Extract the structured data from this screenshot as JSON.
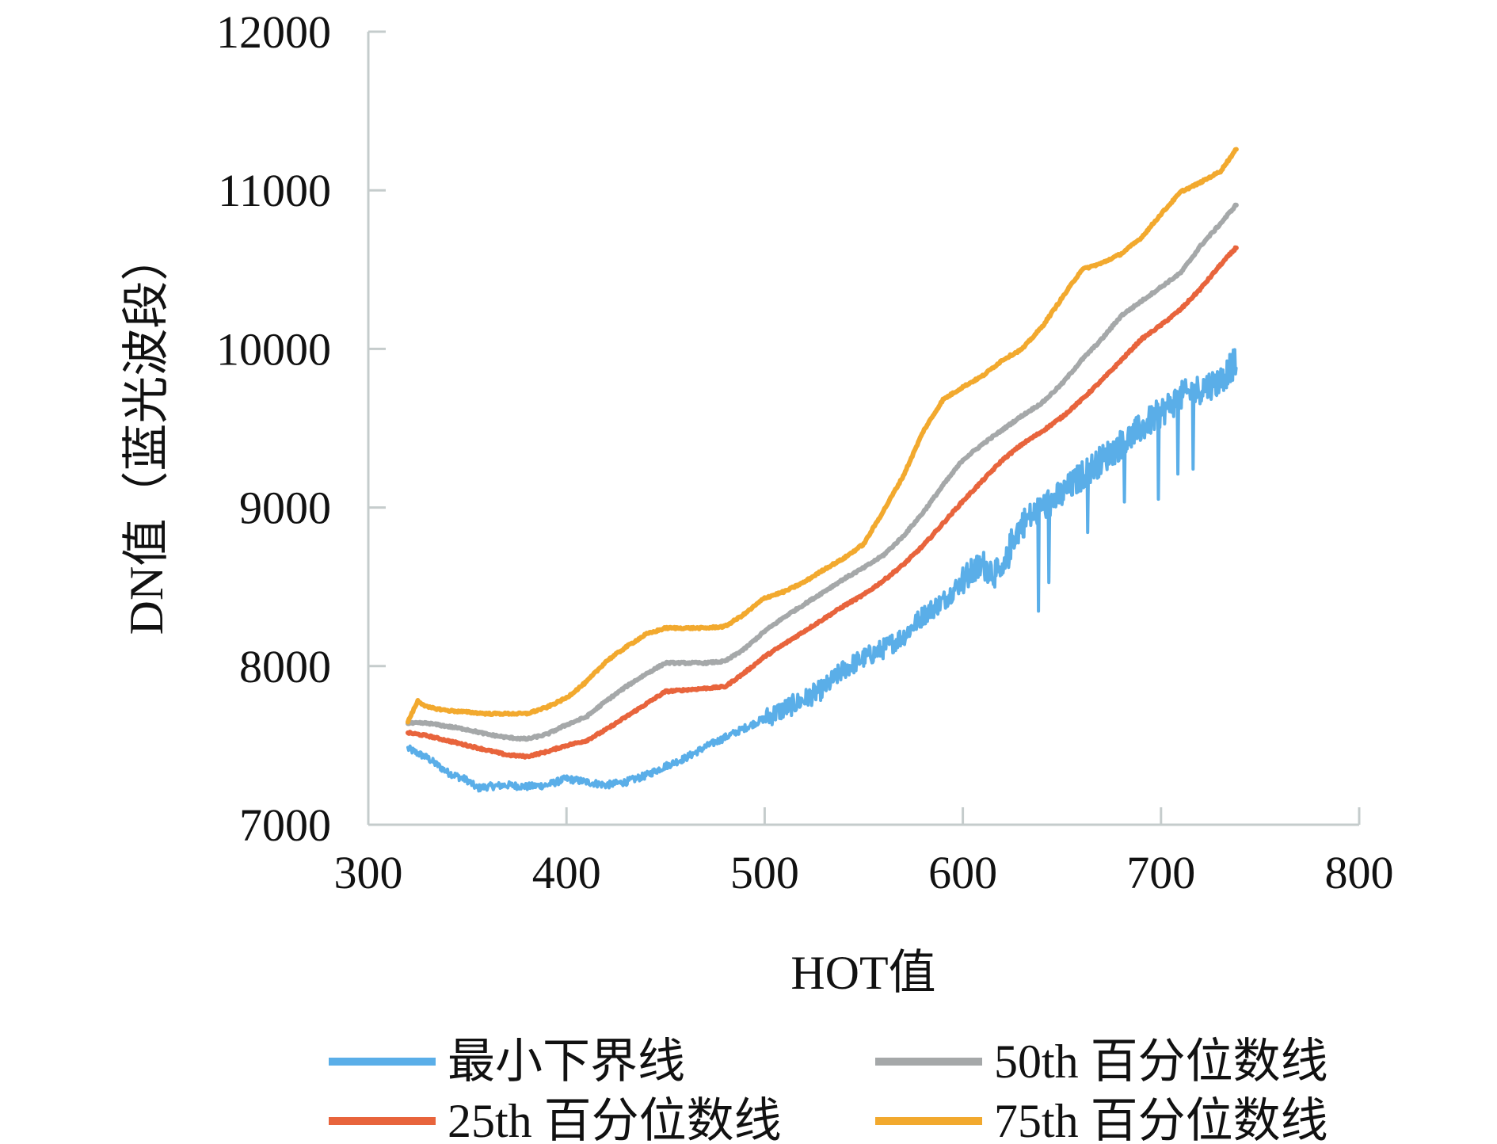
{
  "chart_data": {
    "type": "line",
    "title": "",
    "xlabel": "HOT值",
    "ylabel": "DN值（蓝光波段）",
    "xlim": [
      300,
      800
    ],
    "ylim": [
      7000,
      12000
    ],
    "x_ticks": [
      300,
      400,
      500,
      600,
      700,
      800
    ],
    "y_ticks": [
      7000,
      8000,
      9000,
      10000,
      11000,
      12000
    ],
    "x_tick_labels": [
      "300",
      "400",
      "500",
      "600",
      "700",
      "800"
    ],
    "y_tick_labels": [
      "7000",
      "8000",
      "9000",
      "10000",
      "11000",
      "12000"
    ],
    "grid": false,
    "legend_position": "bottom",
    "series": [
      {
        "name": "最小下界线",
        "color": "#5aaee8",
        "noisy": true,
        "x": [
          320,
          330,
          340,
          350,
          355,
          360,
          370,
          380,
          390,
          400,
          410,
          420,
          430,
          440,
          450,
          460,
          470,
          480,
          490,
          500,
          510,
          520,
          530,
          540,
          550,
          560,
          570,
          580,
          590,
          600,
          610,
          620,
          625,
          630,
          640,
          650,
          660,
          670,
          680,
          690,
          700,
          710,
          720,
          730,
          735,
          738
        ],
        "y": [
          7480,
          7420,
          7330,
          7280,
          7230,
          7240,
          7250,
          7240,
          7250,
          7290,
          7270,
          7250,
          7270,
          7310,
          7370,
          7420,
          7490,
          7550,
          7610,
          7670,
          7730,
          7790,
          7860,
          7980,
          8050,
          8110,
          8190,
          8320,
          8410,
          8540,
          8640,
          8560,
          8800,
          8900,
          9000,
          9080,
          9200,
          9300,
          9400,
          9500,
          9600,
          9700,
          9750,
          9800,
          9880,
          9920
        ]
      },
      {
        "name": "25th 百分位数线",
        "color": "#e8643c",
        "noisy": false,
        "x": [
          320,
          330,
          340,
          350,
          360,
          370,
          380,
          390,
          400,
          410,
          420,
          430,
          440,
          450,
          460,
          470,
          480,
          490,
          500,
          510,
          520,
          530,
          540,
          550,
          560,
          570,
          580,
          590,
          600,
          610,
          620,
          630,
          640,
          650,
          660,
          670,
          680,
          690,
          700,
          710,
          720,
          730,
          738
        ],
        "y": [
          7580,
          7560,
          7530,
          7500,
          7470,
          7440,
          7430,
          7460,
          7500,
          7530,
          7600,
          7680,
          7760,
          7840,
          7850,
          7860,
          7870,
          7960,
          8060,
          8140,
          8220,
          8300,
          8380,
          8450,
          8540,
          8640,
          8760,
          8900,
          9040,
          9170,
          9300,
          9400,
          9480,
          9570,
          9680,
          9800,
          9930,
          10060,
          10150,
          10250,
          10380,
          10530,
          10640
        ]
      },
      {
        "name": "50th 百分位数线",
        "color": "#a5a8a9",
        "noisy": false,
        "x": [
          320,
          330,
          340,
          350,
          360,
          370,
          380,
          390,
          400,
          410,
          420,
          430,
          440,
          450,
          460,
          470,
          480,
          490,
          500,
          510,
          520,
          530,
          540,
          550,
          560,
          570,
          580,
          590,
          600,
          610,
          620,
          630,
          640,
          650,
          660,
          670,
          680,
          690,
          700,
          710,
          720,
          730,
          738
        ],
        "y": [
          7640,
          7640,
          7620,
          7600,
          7570,
          7550,
          7540,
          7570,
          7630,
          7680,
          7780,
          7870,
          7950,
          8020,
          8020,
          8020,
          8030,
          8110,
          8220,
          8310,
          8390,
          8470,
          8550,
          8620,
          8700,
          8820,
          8970,
          9140,
          9300,
          9400,
          9490,
          9580,
          9660,
          9780,
          9930,
          10060,
          10210,
          10300,
          10390,
          10480,
          10650,
          10790,
          10910
        ]
      },
      {
        "name": "75th 百分位数线",
        "color": "#f2a92e",
        "noisy": false,
        "x": [
          320,
          325,
          330,
          340,
          350,
          360,
          370,
          380,
          390,
          400,
          410,
          420,
          430,
          440,
          450,
          460,
          470,
          480,
          490,
          500,
          510,
          520,
          530,
          540,
          550,
          560,
          570,
          580,
          590,
          600,
          610,
          620,
          630,
          640,
          650,
          660,
          670,
          680,
          690,
          700,
          710,
          720,
          730,
          738
        ],
        "y": [
          7650,
          7780,
          7740,
          7720,
          7710,
          7700,
          7700,
          7700,
          7740,
          7800,
          7900,
          8030,
          8120,
          8200,
          8240,
          8240,
          8240,
          8250,
          8330,
          8430,
          8470,
          8530,
          8610,
          8680,
          8770,
          8980,
          9200,
          9480,
          9680,
          9760,
          9830,
          9930,
          10000,
          10140,
          10320,
          10500,
          10540,
          10600,
          10700,
          10850,
          10990,
          11050,
          11120,
          11260
        ]
      }
    ]
  }
}
